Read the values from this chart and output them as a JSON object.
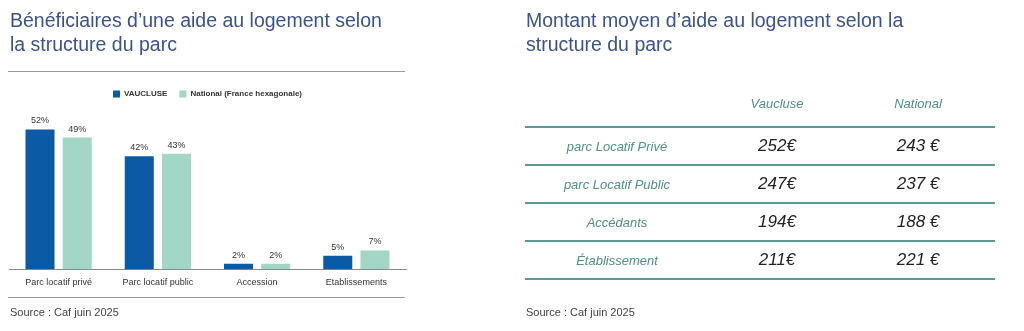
{
  "chart_data": [
    {
      "type": "bar",
      "title": "Bénéficiaires d’une aide au logement selon la structure du parc",
      "categories": [
        "Parc locatif privé",
        "Parc locatif public",
        "Accession",
        "Etablissements"
      ],
      "series": [
        {
          "name": "VAUCLUSE",
          "color": "#0b5aa6",
          "values": [
            52,
            42,
            2,
            5
          ],
          "value_labels": [
            "52%",
            "42%",
            "2%",
            "5%"
          ]
        },
        {
          "name": "National (France hexagonale)",
          "color": "#a2d6c7",
          "values": [
            49,
            43,
            2,
            7
          ],
          "value_labels": [
            "49%",
            "43%",
            "2%",
            "7%"
          ]
        }
      ],
      "legend": "top",
      "grid": false,
      "tick_labels": "x",
      "annotations": [
        "Source : Caf juin 2025"
      ]
    },
    {
      "type": "other",
      "title": "Montant moyen d’aide au logement selon la structure du parc",
      "annotations": [
        "Vaucluse",
        "National",
        "parc Locatif Privé",
        "252€",
        "243 €",
        "parc Locatif Public",
        "247€",
        "237 €",
        "Accédants",
        "194€",
        "188 €",
        "Établissement",
        "211€",
        "221 €",
        "Source : Caf juin 2025"
      ]
    }
  ]
}
